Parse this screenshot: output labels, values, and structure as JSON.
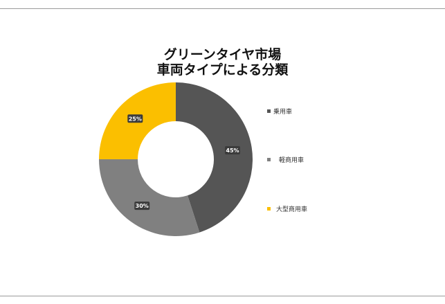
{
  "chart_data": {
    "type": "pie",
    "title_lines": [
      "グリーンタイヤ市場",
      "車両タイプによる分類"
    ],
    "categories": [
      "乗用車",
      "軽商用車",
      "大型商用車"
    ],
    "values": [
      45,
      30,
      25
    ],
    "data_labels": [
      "45%",
      "30%",
      "25%"
    ],
    "colors": [
      "#555555",
      "#808080",
      "#fbbf00"
    ],
    "donut": true,
    "legend_position": "right"
  },
  "legend": [
    {
      "label": "乗用車",
      "color": "#555555"
    },
    {
      "label": "軽商用車",
      "color": "#808080"
    },
    {
      "label": "大型商用車",
      "color": "#fbbf00"
    }
  ]
}
